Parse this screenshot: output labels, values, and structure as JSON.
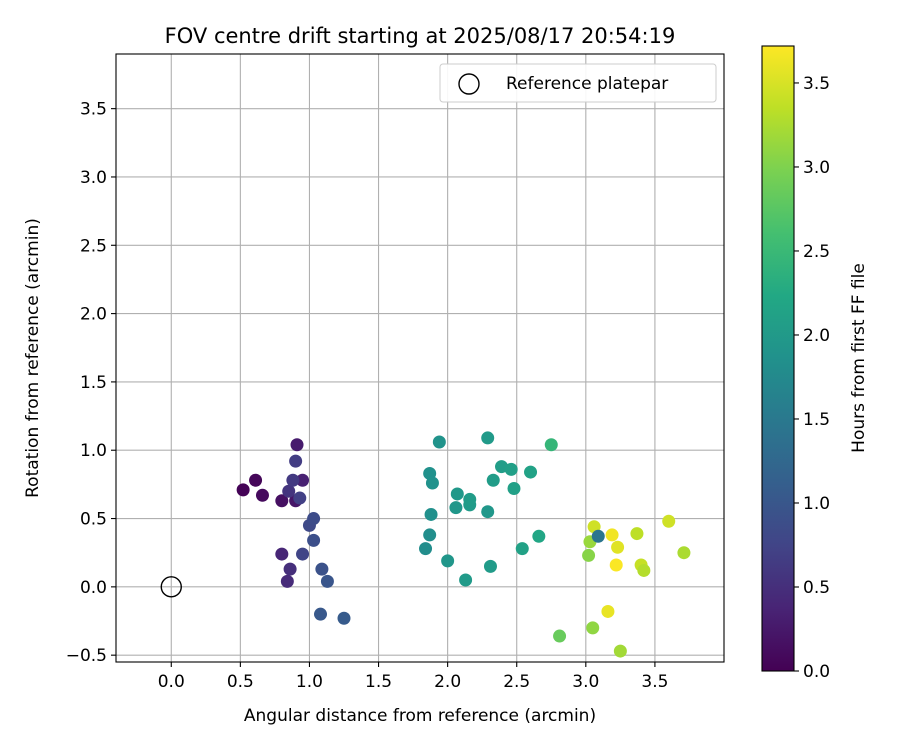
{
  "chart_data": {
    "type": "scatter",
    "title": "FOV centre drift starting at 2025/08/17 20:54:19",
    "xlabel": "Angular distance from reference (arcmin)",
    "ylabel": "Rotation from reference (arcmin)",
    "xlim": [
      -0.4,
      4.0
    ],
    "ylim": [
      -0.55,
      3.9
    ],
    "xticks": [
      0.0,
      0.5,
      1.0,
      1.5,
      2.0,
      2.5,
      3.0,
      3.5
    ],
    "xtick_labels": [
      "0.0",
      "0.5",
      "1.0",
      "1.5",
      "2.0",
      "2.5",
      "3.0",
      "3.5"
    ],
    "yticks": [
      -0.5,
      0.0,
      0.5,
      1.0,
      1.5,
      2.0,
      2.5,
      3.0,
      3.5
    ],
    "ytick_labels": [
      "−0.5",
      "0.0",
      "0.5",
      "1.0",
      "1.5",
      "2.0",
      "2.5",
      "3.0",
      "3.5"
    ],
    "grid": true,
    "legend": {
      "placement": "top-right",
      "entries": [
        "Reference platepar"
      ]
    },
    "reference_point": {
      "x": 0.0,
      "y": 0.0
    },
    "colorbar": {
      "label": "Hours from first FF file",
      "colormap": "viridis",
      "range": [
        0.0,
        3.72
      ],
      "ticks": [
        0.0,
        0.5,
        1.0,
        1.5,
        2.0,
        2.5,
        3.0,
        3.5
      ],
      "tick_labels": [
        "0.0",
        "0.5",
        "1.0",
        "1.5",
        "2.0",
        "2.5",
        "3.0",
        "3.5"
      ]
    },
    "points": [
      {
        "x": 0.52,
        "y": 0.71,
        "c": 0.02
      },
      {
        "x": 0.61,
        "y": 0.78,
        "c": 0.06
      },
      {
        "x": 0.66,
        "y": 0.67,
        "c": 0.1
      },
      {
        "x": 0.8,
        "y": 0.63,
        "c": 0.16
      },
      {
        "x": 0.9,
        "y": 0.63,
        "c": 0.22
      },
      {
        "x": 0.91,
        "y": 1.04,
        "c": 0.28
      },
      {
        "x": 0.95,
        "y": 0.78,
        "c": 0.34
      },
      {
        "x": 0.8,
        "y": 0.24,
        "c": 0.4
      },
      {
        "x": 0.84,
        "y": 0.04,
        "c": 0.45
      },
      {
        "x": 0.86,
        "y": 0.13,
        "c": 0.5
      },
      {
        "x": 0.85,
        "y": 0.7,
        "c": 0.56
      },
      {
        "x": 0.88,
        "y": 0.78,
        "c": 0.62
      },
      {
        "x": 0.9,
        "y": 0.92,
        "c": 0.66
      },
      {
        "x": 0.93,
        "y": 0.65,
        "c": 0.7
      },
      {
        "x": 0.95,
        "y": 0.24,
        "c": 0.76
      },
      {
        "x": 1.0,
        "y": 0.45,
        "c": 0.82
      },
      {
        "x": 1.03,
        "y": 0.5,
        "c": 0.86
      },
      {
        "x": 1.03,
        "y": 0.34,
        "c": 0.9
      },
      {
        "x": 1.09,
        "y": 0.13,
        "c": 0.94
      },
      {
        "x": 1.13,
        "y": 0.04,
        "c": 0.98
      },
      {
        "x": 1.08,
        "y": -0.2,
        "c": 1.02
      },
      {
        "x": 1.25,
        "y": -0.23,
        "c": 1.06
      },
      {
        "x": 1.84,
        "y": 0.28,
        "c": 1.8
      },
      {
        "x": 1.87,
        "y": 0.38,
        "c": 1.82
      },
      {
        "x": 1.88,
        "y": 0.53,
        "c": 1.84
      },
      {
        "x": 1.87,
        "y": 0.83,
        "c": 1.86
      },
      {
        "x": 1.89,
        "y": 0.76,
        "c": 1.88
      },
      {
        "x": 1.94,
        "y": 1.06,
        "c": 1.9
      },
      {
        "x": 2.0,
        "y": 0.19,
        "c": 1.94
      },
      {
        "x": 2.06,
        "y": 0.58,
        "c": 1.96
      },
      {
        "x": 2.07,
        "y": 0.68,
        "c": 1.98
      },
      {
        "x": 2.13,
        "y": 0.05,
        "c": 2.0
      },
      {
        "x": 2.16,
        "y": 0.6,
        "c": 2.02
      },
      {
        "x": 2.16,
        "y": 0.64,
        "c": 2.04
      },
      {
        "x": 2.29,
        "y": 0.55,
        "c": 1.96
      },
      {
        "x": 2.29,
        "y": 1.09,
        "c": 2.0
      },
      {
        "x": 2.31,
        "y": 0.15,
        "c": 2.02
      },
      {
        "x": 2.33,
        "y": 0.78,
        "c": 2.04
      },
      {
        "x": 2.39,
        "y": 0.88,
        "c": 2.06
      },
      {
        "x": 2.46,
        "y": 0.86,
        "c": 2.08
      },
      {
        "x": 2.48,
        "y": 0.72,
        "c": 2.1
      },
      {
        "x": 2.54,
        "y": 0.28,
        "c": 2.12
      },
      {
        "x": 2.6,
        "y": 0.84,
        "c": 2.14
      },
      {
        "x": 2.66,
        "y": 0.37,
        "c": 2.2
      },
      {
        "x": 2.75,
        "y": 1.04,
        "c": 2.45
      },
      {
        "x": 2.81,
        "y": -0.36,
        "c": 2.85
      },
      {
        "x": 3.02,
        "y": 0.23,
        "c": 3.05
      },
      {
        "x": 3.03,
        "y": 0.33,
        "c": 3.15
      },
      {
        "x": 3.05,
        "y": -0.3,
        "c": 3.1
      },
      {
        "x": 3.06,
        "y": 0.44,
        "c": 3.45
      },
      {
        "x": 3.09,
        "y": 0.37,
        "c": 1.45
      },
      {
        "x": 3.16,
        "y": -0.18,
        "c": 3.6
      },
      {
        "x": 3.19,
        "y": 0.38,
        "c": 3.65
      },
      {
        "x": 3.22,
        "y": 0.16,
        "c": 3.7
      },
      {
        "x": 3.23,
        "y": 0.29,
        "c": 3.55
      },
      {
        "x": 3.25,
        "y": -0.47,
        "c": 3.2
      },
      {
        "x": 3.37,
        "y": 0.39,
        "c": 3.35
      },
      {
        "x": 3.4,
        "y": 0.16,
        "c": 3.4
      },
      {
        "x": 3.42,
        "y": 0.12,
        "c": 3.3
      },
      {
        "x": 3.6,
        "y": 0.48,
        "c": 3.45
      },
      {
        "x": 3.71,
        "y": 0.25,
        "c": 3.25
      }
    ]
  }
}
